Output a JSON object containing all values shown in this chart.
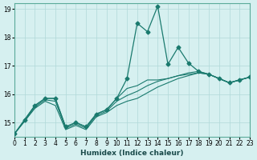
{
  "xlabel": "Humidex (Indice chaleur)",
  "ylabel": "",
  "bg_color": "#d6f0f0",
  "grid_color": "#b0d8d8",
  "line_color": "#1a7a6e",
  "xlim": [
    0,
    23
  ],
  "ylim": [
    14.5,
    19.2
  ],
  "yticks": [
    15,
    16,
    17,
    18,
    19
  ],
  "xticks": [
    0,
    1,
    2,
    3,
    4,
    5,
    6,
    7,
    8,
    9,
    10,
    11,
    12,
    13,
    14,
    15,
    16,
    17,
    18,
    19,
    20,
    21,
    22,
    23
  ],
  "line1": {
    "x": [
      0,
      1,
      2,
      3,
      4,
      5,
      6,
      7,
      8,
      9,
      10,
      11,
      12,
      13,
      14,
      15,
      16,
      17,
      18,
      19,
      20,
      21,
      22,
      23
    ],
    "y": [
      14.6,
      15.1,
      15.6,
      15.85,
      15.85,
      14.85,
      15.0,
      14.85,
      15.3,
      15.45,
      15.85,
      16.55,
      18.5,
      18.2,
      19.1,
      17.05,
      17.65,
      17.1,
      16.8,
      16.7,
      16.55,
      16.4,
      16.5,
      16.6
    ]
  },
  "line2": {
    "x": [
      0,
      1,
      2,
      3,
      4,
      5,
      6,
      7,
      8,
      9,
      10,
      11,
      12,
      13,
      14,
      15,
      16,
      17,
      18,
      19,
      20,
      21,
      22,
      23
    ],
    "y": [
      14.6,
      15.1,
      15.6,
      15.85,
      15.85,
      14.85,
      15.0,
      14.85,
      15.3,
      15.45,
      15.85,
      16.2,
      16.3,
      16.5,
      16.5,
      16.55,
      16.65,
      16.75,
      16.8,
      16.7,
      16.55,
      16.4,
      16.5,
      16.6
    ]
  },
  "line3": {
    "x": [
      0,
      1,
      2,
      3,
      4,
      5,
      6,
      7,
      8,
      9,
      10,
      11,
      12,
      13,
      14,
      15,
      16,
      17,
      18,
      19,
      20,
      21,
      22,
      23
    ],
    "y": [
      14.6,
      15.05,
      15.55,
      15.8,
      15.75,
      14.8,
      14.95,
      14.8,
      15.25,
      15.4,
      15.75,
      15.95,
      16.1,
      16.3,
      16.45,
      16.55,
      16.65,
      16.7,
      16.75,
      16.7,
      16.55,
      16.4,
      16.5,
      16.6
    ]
  },
  "line4": {
    "x": [
      0,
      1,
      2,
      3,
      4,
      5,
      6,
      7,
      8,
      9,
      10,
      11,
      12,
      13,
      14,
      15,
      16,
      17,
      18,
      19,
      20,
      21,
      22,
      23
    ],
    "y": [
      14.6,
      15.05,
      15.5,
      15.75,
      15.6,
      14.75,
      14.9,
      14.75,
      15.2,
      15.35,
      15.6,
      15.75,
      15.85,
      16.05,
      16.25,
      16.4,
      16.55,
      16.65,
      16.75,
      16.7,
      16.55,
      16.4,
      16.5,
      16.6
    ]
  }
}
